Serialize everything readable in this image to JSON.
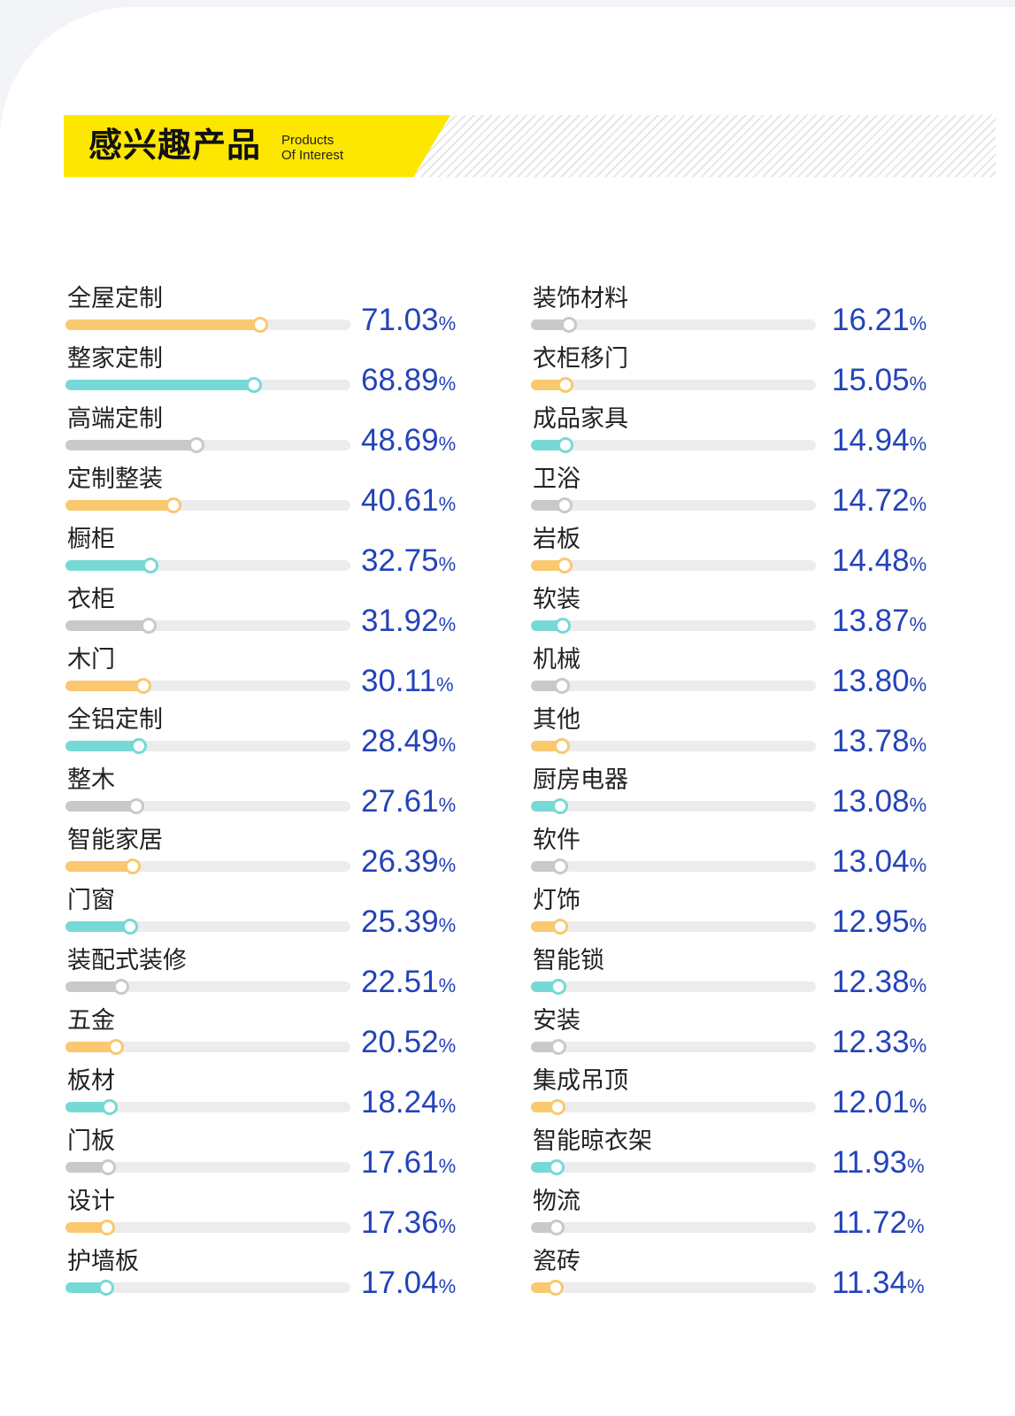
{
  "header": {
    "title": "感兴趣产品",
    "subtitle_line1": "Products",
    "subtitle_line2": "Of Interest"
  },
  "colors": {
    "orange": "#f9c86f",
    "teal": "#77d9d6",
    "gray": "#c9c9cb",
    "track": "#ececec",
    "value_text": "#2443b9",
    "banner_yellow": "#fde600"
  },
  "chart_data": {
    "type": "bar",
    "orientation": "horizontal",
    "unit": "%",
    "xlim": [
      0,
      100
    ],
    "columns": [
      {
        "items": [
          {
            "label": "全屋定制",
            "value": 71.03,
            "color": "orange"
          },
          {
            "label": "整家定制",
            "value": 68.89,
            "color": "teal"
          },
          {
            "label": "高端定制",
            "value": 48.69,
            "color": "gray"
          },
          {
            "label": "定制整装",
            "value": 40.61,
            "color": "orange"
          },
          {
            "label": "橱柜",
            "value": 32.75,
            "color": "teal"
          },
          {
            "label": "衣柜",
            "value": 31.92,
            "color": "gray"
          },
          {
            "label": "木门",
            "value": 30.11,
            "color": "orange"
          },
          {
            "label": "全铝定制",
            "value": 28.49,
            "color": "teal"
          },
          {
            "label": "整木",
            "value": 27.61,
            "color": "gray"
          },
          {
            "label": "智能家居",
            "value": 26.39,
            "color": "orange"
          },
          {
            "label": "门窗",
            "value": 25.39,
            "color": "teal"
          },
          {
            "label": "装配式装修",
            "value": 22.51,
            "color": "gray"
          },
          {
            "label": "五金",
            "value": 20.52,
            "color": "orange"
          },
          {
            "label": "板材",
            "value": 18.24,
            "color": "teal"
          },
          {
            "label": "门板",
            "value": 17.61,
            "color": "gray"
          },
          {
            "label": "设计",
            "value": 17.36,
            "color": "orange"
          },
          {
            "label": "护墙板",
            "value": 17.04,
            "color": "teal"
          }
        ]
      },
      {
        "items": [
          {
            "label": "装饰材料",
            "value": 16.21,
            "color": "gray"
          },
          {
            "label": "衣柜移门",
            "value": 15.05,
            "color": "orange"
          },
          {
            "label": "成品家具",
            "value": 14.94,
            "color": "teal"
          },
          {
            "label": "卫浴",
            "value": 14.72,
            "color": "gray"
          },
          {
            "label": "岩板",
            "value": 14.48,
            "color": "orange"
          },
          {
            "label": "软装",
            "value": 13.87,
            "color": "teal"
          },
          {
            "label": "机械",
            "value": 13.8,
            "color": "gray"
          },
          {
            "label": "其他",
            "value": 13.78,
            "color": "orange"
          },
          {
            "label": "厨房电器",
            "value": 13.08,
            "color": "teal"
          },
          {
            "label": "软件",
            "value": 13.04,
            "color": "gray"
          },
          {
            "label": "灯饰",
            "value": 12.95,
            "color": "orange"
          },
          {
            "label": "智能锁",
            "value": 12.38,
            "color": "teal"
          },
          {
            "label": "安装",
            "value": 12.33,
            "color": "gray"
          },
          {
            "label": "集成吊顶",
            "value": 12.01,
            "color": "orange"
          },
          {
            "label": "智能晾衣架",
            "value": 11.93,
            "color": "teal"
          },
          {
            "label": "物流",
            "value": 11.72,
            "color": "gray"
          },
          {
            "label": "瓷砖",
            "value": 11.34,
            "color": "orange"
          }
        ]
      }
    ]
  }
}
